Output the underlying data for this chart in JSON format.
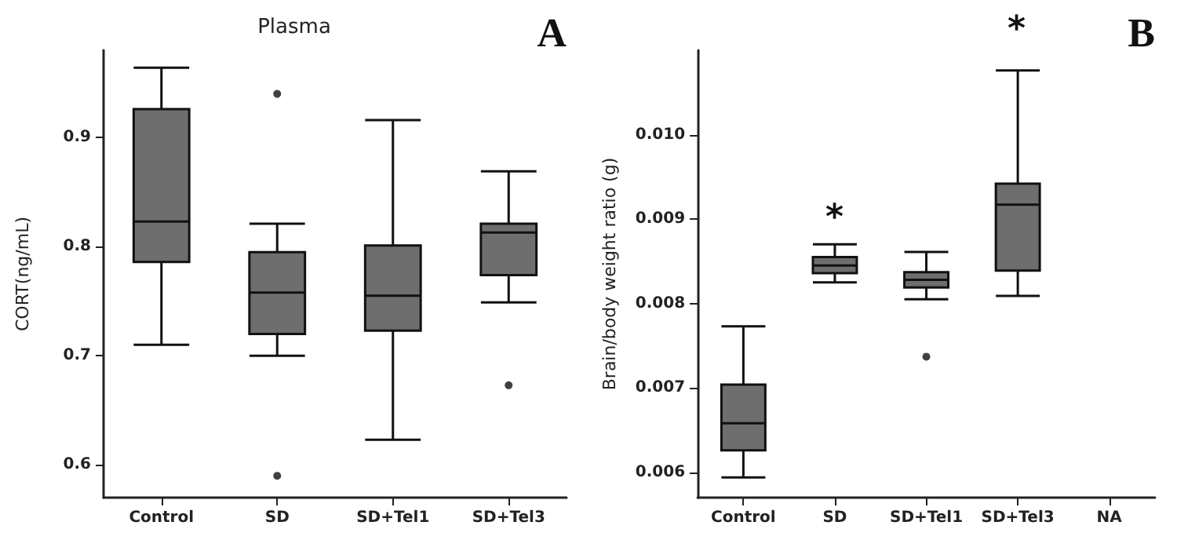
{
  "chart_data": [
    {
      "type": "box",
      "title": "Plasma",
      "ylabel": "CORT(ng/mL)",
      "categories": [
        "Control",
        "SD",
        "SD+Tel1",
        "SD+Tel3"
      ],
      "color": "#6e6e6e",
      "ylim": [
        0.57,
        0.98
      ],
      "yticks": [
        0.6,
        0.7,
        0.8,
        0.9
      ],
      "grid": false,
      "annotations": [
        "A"
      ],
      "boxes": [
        {
          "low": 0.71,
          "q1": 0.786,
          "median": 0.823,
          "q3": 0.926,
          "high": 0.964
        },
        {
          "low": 0.7,
          "q1": 0.72,
          "median": 0.758,
          "q3": 0.795,
          "high": 0.821,
          "outliers": [
            0.94,
            0.59
          ]
        },
        {
          "low": 0.623,
          "q1": 0.723,
          "median": 0.755,
          "q3": 0.801,
          "high": 0.916
        },
        {
          "low": 0.749,
          "q1": 0.774,
          "median": 0.813,
          "q3": 0.821,
          "high": 0.869,
          "outliers": [
            0.673
          ]
        }
      ]
    },
    {
      "type": "box",
      "ylabel": "Brain/body weight ratio (g)",
      "categories": [
        "Control",
        "SD",
        "SD+Tel1",
        "SD+Tel3",
        "NA"
      ],
      "color": "#6e6e6e",
      "ylim": [
        0.0057,
        0.011
      ],
      "yticks": [
        0.006,
        0.007,
        0.008,
        0.009,
        {
          "value": 0.01,
          "label": "0.010"
        }
      ],
      "grid": false,
      "annotations": [
        "B",
        "*",
        "*"
      ],
      "boxes": [
        {
          "low": 0.00594,
          "q1": 0.00626,
          "median": 0.00658,
          "q3": 0.00704,
          "high": 0.00773
        },
        {
          "low": 0.00825,
          "q1": 0.00836,
          "median": 0.00845,
          "q3": 0.00855,
          "high": 0.0087
        },
        {
          "low": 0.00805,
          "q1": 0.00819,
          "median": 0.00828,
          "q3": 0.00837,
          "high": 0.00861,
          "outliers": [
            0.00737
          ]
        },
        {
          "low": 0.00809,
          "q1": 0.00839,
          "median": 0.00917,
          "q3": 0.00942,
          "high": 0.01076
        },
        null
      ]
    }
  ]
}
